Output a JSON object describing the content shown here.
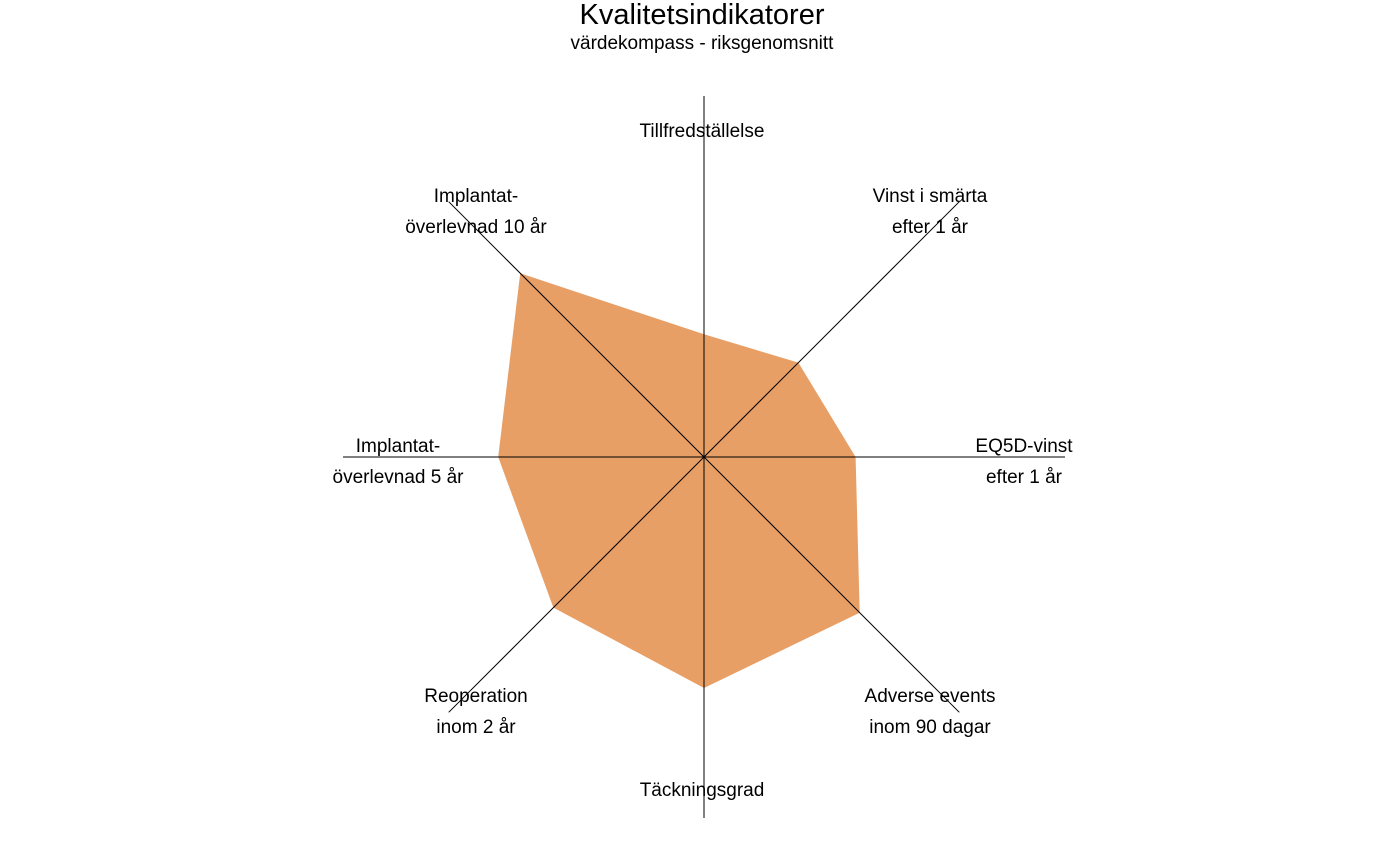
{
  "chart_data": {
    "type": "radar",
    "title": "Kvalitetsindikatorer",
    "subtitle": "värdekompass - riksgenomsnitt",
    "axes": [
      {
        "lines": [
          "Tillfredställelse"
        ]
      },
      {
        "lines": [
          "Vinst i smärta",
          "efter 1 år"
        ]
      },
      {
        "lines": [
          "EQ5D-vinst",
          "efter 1 år"
        ]
      },
      {
        "lines": [
          "Adverse events",
          "inom 90 dagar"
        ]
      },
      {
        "lines": [
          "Täckningsgrad"
        ]
      },
      {
        "lines": [
          "Reoperation",
          "inom 2 år"
        ]
      },
      {
        "lines": [
          "Implantat-",
          "överlevnad 5 år"
        ]
      },
      {
        "lines": [
          "Implantat-",
          "överlevnad 10 år"
        ]
      }
    ],
    "series": [
      {
        "color": "#E89F66",
        "values": [
          0.34,
          0.37,
          0.42,
          0.61,
          0.64,
          0.59,
          0.57,
          0.72
        ]
      }
    ],
    "scale": [
      0,
      1
    ],
    "grid": false,
    "legend": "none"
  }
}
